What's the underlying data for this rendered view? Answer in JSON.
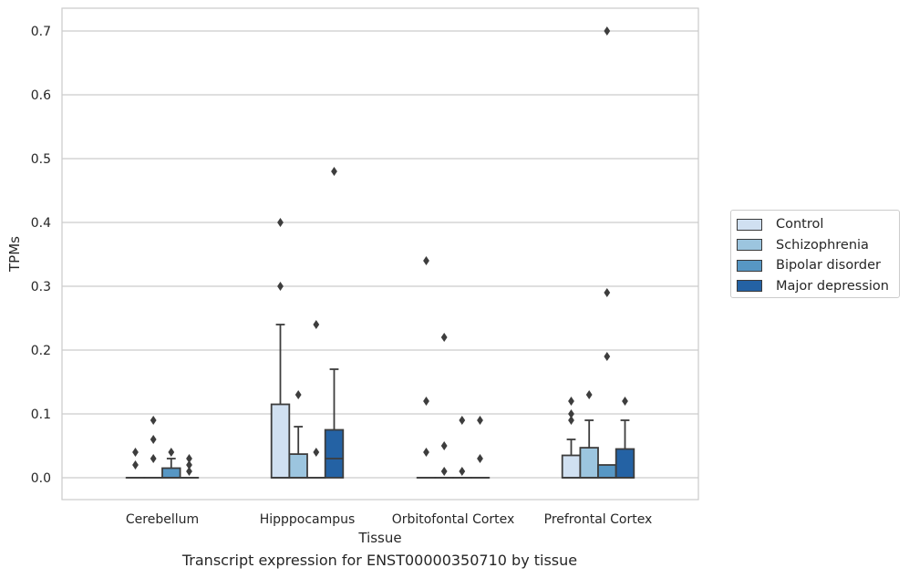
{
  "chart_data": {
    "type": "boxplot",
    "xlabel": "Tissue",
    "ylabel": "TPMs",
    "ylim": [
      -0.035,
      0.735
    ],
    "yticks": [
      0.0,
      0.1,
      0.2,
      0.3,
      0.4,
      0.5,
      0.6,
      0.7
    ],
    "ytick_labels": [
      "0.0",
      "0.1",
      "0.2",
      "0.3",
      "0.4",
      "0.5",
      "0.6",
      "0.7"
    ],
    "grid": "horizontal",
    "legend_position": "right",
    "categories": [
      "Cerebellum",
      "Hipppocampus",
      "Orbitofontal Cortex",
      "Prefrontal Cortex"
    ],
    "series": [
      {
        "name": "Control",
        "color": "#d0e0f1",
        "boxes": [
          {
            "q1": 0,
            "median": 0,
            "q3": 0,
            "whisker_low": 0,
            "whisker_high": 0,
            "outliers": [
              0.02,
              0.04
            ]
          },
          {
            "q1": 0,
            "median": 0,
            "q3": 0.115,
            "whisker_low": 0,
            "whisker_high": 0.24,
            "outliers": [
              0.3,
              0.4
            ]
          },
          {
            "q1": 0,
            "median": 0,
            "q3": 0,
            "whisker_low": 0,
            "whisker_high": 0,
            "outliers": [
              0.04,
              0.12,
              0.34
            ]
          },
          {
            "q1": 0,
            "median": 0,
            "q3": 0.035,
            "whisker_low": 0,
            "whisker_high": 0.06,
            "outliers": [
              0.09,
              0.1,
              0.12
            ]
          }
        ]
      },
      {
        "name": "Schizophrenia",
        "color": "#9cc5df",
        "boxes": [
          {
            "q1": 0,
            "median": 0,
            "q3": 0,
            "whisker_low": 0,
            "whisker_high": 0,
            "outliers": [
              0.03,
              0.06,
              0.09
            ]
          },
          {
            "q1": 0,
            "median": 0,
            "q3": 0.037,
            "whisker_low": 0,
            "whisker_high": 0.08,
            "outliers": [
              0.13
            ]
          },
          {
            "q1": 0,
            "median": 0,
            "q3": 0,
            "whisker_low": 0,
            "whisker_high": 0,
            "outliers": [
              0.01,
              0.05,
              0.22
            ]
          },
          {
            "q1": 0,
            "median": 0,
            "q3": 0.047,
            "whisker_low": 0,
            "whisker_high": 0.09,
            "outliers": [
              0.13
            ]
          }
        ]
      },
      {
        "name": "Bipolar disorder",
        "color": "#5797c4",
        "boxes": [
          {
            "q1": 0,
            "median": 0,
            "q3": 0.015,
            "whisker_low": 0,
            "whisker_high": 0.03,
            "outliers": [
              0.04
            ]
          },
          {
            "q1": 0,
            "median": 0,
            "q3": 0,
            "whisker_low": 0,
            "whisker_high": 0,
            "outliers": [
              0.04,
              0.24
            ]
          },
          {
            "q1": 0,
            "median": 0,
            "q3": 0,
            "whisker_low": 0,
            "whisker_high": 0,
            "outliers": [
              0.01,
              0.09
            ]
          },
          {
            "q1": 0,
            "median": 0,
            "q3": 0.02,
            "whisker_low": 0,
            "whisker_high": 0.02,
            "outliers": [
              0.19,
              0.29,
              0.7
            ]
          }
        ]
      },
      {
        "name": "Major depression",
        "color": "#2462a4",
        "boxes": [
          {
            "q1": 0,
            "median": 0,
            "q3": 0,
            "whisker_low": 0,
            "whisker_high": 0,
            "outliers": [
              0.01,
              0.02,
              0.03
            ]
          },
          {
            "q1": 0,
            "median": 0.03,
            "q3": 0.075,
            "whisker_low": 0,
            "whisker_high": 0.17,
            "outliers": [
              0.48
            ]
          },
          {
            "q1": 0,
            "median": 0,
            "q3": 0,
            "whisker_low": 0,
            "whisker_high": 0,
            "outliers": [
              0.03,
              0.09
            ]
          },
          {
            "q1": 0,
            "median": 0,
            "q3": 0.045,
            "whisker_low": 0,
            "whisker_high": 0.09,
            "outliers": [
              0.12
            ]
          }
        ]
      }
    ]
  },
  "caption": "Transcript expression for ENST00000350710 by tissue"
}
